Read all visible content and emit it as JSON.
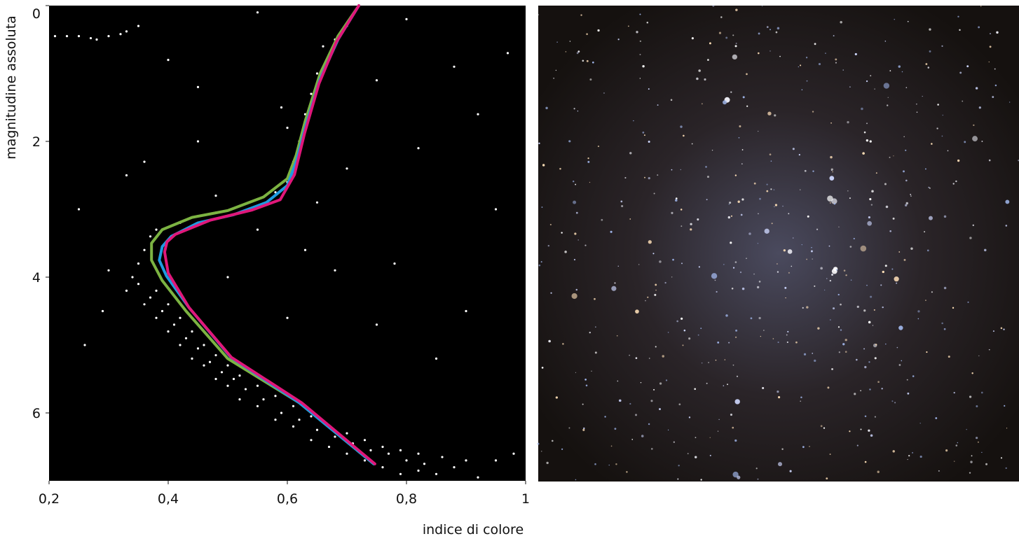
{
  "chart_data": {
    "type": "scatter",
    "x_label": "indice di colore",
    "y_label": "magnitudine assoluta",
    "xlim": [
      0.2,
      1
    ],
    "xticks": [
      {
        "value": 0.2,
        "label": "0,2"
      },
      {
        "value": 0.4,
        "label": "0,4"
      },
      {
        "value": 0.6,
        "label": "0,6"
      },
      {
        "value": 0.8,
        "label": "0,8"
      },
      1
    ],
    "ylim": [
      7,
      0
    ],
    "yticks": [
      0,
      2,
      4,
      6
    ],
    "grid": false,
    "background": "#000000",
    "series": [
      {
        "type": "scatter",
        "color": "#ffffff",
        "x": [
          0.33,
          0.34,
          0.35,
          0.36,
          0.37,
          0.38,
          0.36,
          0.38,
          0.4,
          0.42,
          0.44,
          0.46,
          0.48,
          0.5,
          0.52,
          0.55,
          0.58,
          0.61,
          0.64,
          0.67,
          0.7,
          0.73,
          0.76,
          0.79,
          0.82,
          0.85,
          0.88,
          0.92,
          0.95,
          0.98,
          0.35,
          0.37,
          0.39,
          0.41,
          0.43,
          0.45,
          0.47,
          0.49,
          0.51,
          0.53,
          0.56,
          0.59,
          0.62,
          0.65,
          0.68,
          0.71,
          0.74,
          0.77,
          0.8,
          0.83,
          0.38,
          0.4,
          0.42,
          0.44,
          0.46,
          0.48,
          0.5,
          0.52,
          0.55,
          0.58,
          0.61,
          0.64,
          0.67,
          0.7,
          0.73,
          0.76,
          0.79,
          0.82,
          0.86,
          0.9,
          0.42,
          0.45,
          0.48,
          0.52,
          0.55,
          0.58,
          0.6,
          0.61,
          0.62,
          0.6,
          0.63,
          0.64,
          0.65,
          0.67,
          0.68,
          0.7,
          0.59,
          0.66,
          0.21,
          0.23,
          0.25,
          0.27,
          0.28,
          0.3,
          0.32,
          0.33,
          0.3,
          0.29,
          0.26,
          0.25,
          0.33,
          0.36,
          0.45,
          0.48,
          0.55,
          0.63,
          0.7,
          0.75,
          0.78,
          0.82,
          0.88,
          0.92,
          0.95,
          0.97,
          0.9,
          0.85,
          0.75,
          0.68,
          0.6,
          0.5,
          0.45,
          0.4,
          0.35,
          0.55,
          0.8,
          0.65
        ],
        "values": [
          4.2,
          4.0,
          3.8,
          3.6,
          3.4,
          3.3,
          4.4,
          4.6,
          4.8,
          5.0,
          5.2,
          5.3,
          5.5,
          5.6,
          5.8,
          5.9,
          6.1,
          6.2,
          6.4,
          6.5,
          6.6,
          6.7,
          6.8,
          6.9,
          6.85,
          6.9,
          6.8,
          6.95,
          6.7,
          6.6,
          4.1,
          4.3,
          4.5,
          4.7,
          4.9,
          5.05,
          5.25,
          5.4,
          5.5,
          5.65,
          5.8,
          6.0,
          6.1,
          6.25,
          6.35,
          6.45,
          6.55,
          6.6,
          6.7,
          6.75,
          4.2,
          4.4,
          4.6,
          4.8,
          5.0,
          5.15,
          5.3,
          5.45,
          5.6,
          5.75,
          5.9,
          6.05,
          6.2,
          6.3,
          6.4,
          6.5,
          6.55,
          6.6,
          6.65,
          6.7,
          3.2,
          3.1,
          3.05,
          2.95,
          2.85,
          2.75,
          2.6,
          2.3,
          2.0,
          1.8,
          1.6,
          1.3,
          1.0,
          0.8,
          0.5,
          0.3,
          1.5,
          0.6,
          0.45,
          0.45,
          0.45,
          0.48,
          0.5,
          0.45,
          0.42,
          0.38,
          3.9,
          4.5,
          5.0,
          3.0,
          2.5,
          2.3,
          1.2,
          2.8,
          3.3,
          3.6,
          2.4,
          1.1,
          3.8,
          2.1,
          0.9,
          1.6,
          3.0,
          0.7,
          4.5,
          5.2,
          4.7,
          3.9,
          4.6,
          4.0,
          2.0,
          0.8,
          0.3,
          0.1,
          0.2,
          2.9
        ]
      },
      {
        "type": "line",
        "color": "#7cb342",
        "x": [
          0.745,
          0.62,
          0.5,
          0.43,
          0.39,
          0.372,
          0.372,
          0.39,
          0.44,
          0.5,
          0.56,
          0.6,
          0.615,
          0.63,
          0.655,
          0.685,
          0.72
        ],
        "values": [
          6.75,
          5.85,
          5.2,
          4.5,
          4.05,
          3.75,
          3.5,
          3.3,
          3.12,
          3.02,
          2.82,
          2.55,
          2.2,
          1.7,
          1.0,
          0.45,
          0.0
        ]
      },
      {
        "type": "line",
        "color": "#1e9be0",
        "x": [
          0.745,
          0.62,
          0.505,
          0.435,
          0.397,
          0.385,
          0.39,
          0.405,
          0.45,
          0.51,
          0.565,
          0.6,
          0.615,
          0.63,
          0.655,
          0.685,
          0.72
        ],
        "values": [
          6.75,
          5.85,
          5.18,
          4.45,
          3.98,
          3.75,
          3.55,
          3.4,
          3.2,
          3.08,
          2.9,
          2.65,
          2.3,
          1.8,
          1.08,
          0.5,
          0.0
        ]
      },
      {
        "type": "line",
        "color": "#e0177a",
        "x": [
          0.747,
          0.624,
          0.506,
          0.435,
          0.4,
          0.394,
          0.398,
          0.412,
          0.471,
          0.541,
          0.588,
          0.612,
          0.629,
          0.653,
          0.682,
          0.72
        ],
        "values": [
          6.75,
          5.85,
          5.18,
          4.45,
          3.94,
          3.63,
          3.48,
          3.37,
          3.16,
          3.01,
          2.86,
          2.49,
          1.88,
          1.15,
          0.54,
          0.0
        ]
      }
    ]
  }
}
